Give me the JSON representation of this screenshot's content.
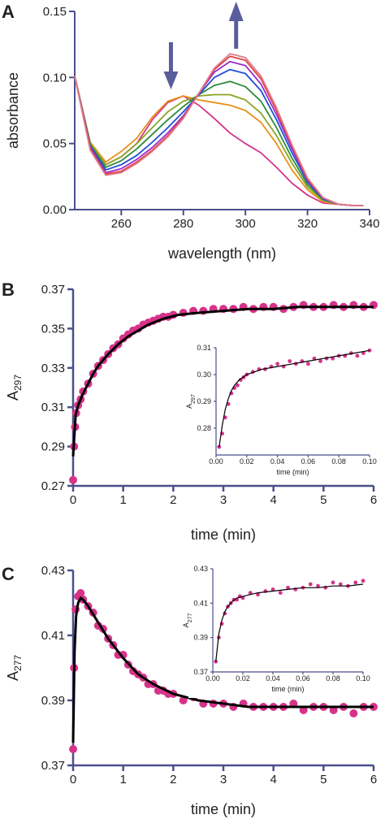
{
  "colors": {
    "axis": "#4a4f8c",
    "points": "#d6338a",
    "fit": "#000000",
    "arrow": "#5a5d9c"
  },
  "chart_data": [
    {
      "panel": "A",
      "type": "line",
      "xlabel": "wavelength (nm)",
      "ylabel": "absorbance",
      "xlim": [
        245,
        340
      ],
      "ylim": [
        0,
        0.15
      ],
      "xticks": [
        260,
        280,
        300,
        320,
        340
      ],
      "yticks": [
        0.0,
        0.05,
        0.1,
        0.15
      ],
      "ytick_labels": [
        "0.00",
        "0.05",
        "0.10",
        "0.15"
      ],
      "annotations": [
        {
          "type": "arrow-down",
          "x": 276
        },
        {
          "type": "arrow-up",
          "x": 297
        }
      ],
      "series": [
        {
          "color": "#d6338a",
          "x": [
            245,
            250,
            255,
            260,
            265,
            270,
            275,
            280,
            285,
            290,
            295,
            300,
            305,
            310,
            315,
            320,
            325,
            330,
            335,
            338
          ],
          "y": [
            0.101,
            0.05,
            0.034,
            0.04,
            0.05,
            0.068,
            0.081,
            0.086,
            0.079,
            0.069,
            0.058,
            0.05,
            0.043,
            0.032,
            0.02,
            0.011,
            0.005,
            0.004,
            0.003,
            0.003
          ]
        },
        {
          "color": "#e8901a",
          "x": [
            245,
            250,
            255,
            260,
            265,
            270,
            275,
            280,
            285,
            290,
            295,
            300,
            305,
            310,
            315,
            320,
            325,
            330,
            335,
            338
          ],
          "y": [
            0.101,
            0.051,
            0.036,
            0.044,
            0.054,
            0.07,
            0.082,
            0.086,
            0.083,
            0.081,
            0.079,
            0.075,
            0.066,
            0.05,
            0.03,
            0.015,
            0.006,
            0.004,
            0.003,
            0.003
          ]
        },
        {
          "color": "#8aa524",
          "x": [
            245,
            250,
            255,
            260,
            265,
            270,
            275,
            280,
            285,
            290,
            295,
            300,
            305,
            310,
            315,
            320,
            325,
            330,
            335,
            338
          ],
          "y": [
            0.101,
            0.05,
            0.034,
            0.04,
            0.05,
            0.062,
            0.074,
            0.082,
            0.086,
            0.087,
            0.087,
            0.083,
            0.073,
            0.056,
            0.035,
            0.017,
            0.007,
            0.004,
            0.003,
            0.003
          ]
        },
        {
          "color": "#2a8a3a",
          "x": [
            245,
            250,
            255,
            260,
            265,
            270,
            275,
            280,
            285,
            290,
            295,
            300,
            305,
            310,
            315,
            320,
            325,
            330,
            335,
            338
          ],
          "y": [
            0.101,
            0.049,
            0.032,
            0.037,
            0.046,
            0.057,
            0.068,
            0.078,
            0.087,
            0.094,
            0.097,
            0.093,
            0.082,
            0.062,
            0.039,
            0.019,
            0.008,
            0.004,
            0.003,
            0.003
          ]
        },
        {
          "color": "#1f4fd8",
          "x": [
            245,
            250,
            255,
            260,
            265,
            270,
            275,
            280,
            285,
            290,
            295,
            300,
            305,
            310,
            315,
            320,
            325,
            330,
            335,
            338
          ],
          "y": [
            0.101,
            0.048,
            0.03,
            0.034,
            0.041,
            0.051,
            0.062,
            0.074,
            0.087,
            0.1,
            0.106,
            0.103,
            0.09,
            0.068,
            0.043,
            0.021,
            0.008,
            0.004,
            0.003,
            0.003
          ]
        },
        {
          "color": "#9a2bd0",
          "x": [
            245,
            250,
            255,
            260,
            265,
            270,
            275,
            280,
            285,
            290,
            295,
            300,
            305,
            310,
            315,
            320,
            325,
            330,
            335,
            338
          ],
          "y": [
            0.101,
            0.047,
            0.028,
            0.031,
            0.038,
            0.047,
            0.058,
            0.071,
            0.088,
            0.104,
            0.112,
            0.109,
            0.095,
            0.072,
            0.046,
            0.022,
            0.009,
            0.004,
            0.003,
            0.003
          ]
        },
        {
          "color": "#e04040",
          "x": [
            245,
            250,
            255,
            260,
            265,
            270,
            275,
            280,
            285,
            290,
            295,
            300,
            305,
            310,
            315,
            320,
            325,
            330,
            335,
            338
          ],
          "y": [
            0.101,
            0.046,
            0.027,
            0.029,
            0.036,
            0.045,
            0.056,
            0.07,
            0.088,
            0.106,
            0.116,
            0.113,
            0.099,
            0.075,
            0.048,
            0.023,
            0.009,
            0.004,
            0.003,
            0.003
          ]
        },
        {
          "color": "#e07a8a",
          "x": [
            245,
            250,
            255,
            260,
            265,
            270,
            275,
            280,
            285,
            290,
            295,
            300,
            305,
            310,
            315,
            320,
            325,
            330,
            335,
            338
          ],
          "y": [
            0.101,
            0.045,
            0.026,
            0.028,
            0.035,
            0.044,
            0.055,
            0.069,
            0.088,
            0.107,
            0.118,
            0.115,
            0.101,
            0.077,
            0.049,
            0.024,
            0.009,
            0.004,
            0.003,
            0.003
          ]
        }
      ]
    },
    {
      "panel": "B",
      "type": "scatter",
      "xlabel": "time (min)",
      "ylabel": "A297",
      "xlim": [
        0,
        6
      ],
      "ylim": [
        0.27,
        0.37
      ],
      "xticks": [
        0,
        1,
        2,
        3,
        4,
        5,
        6
      ],
      "yticks": [
        0.27,
        0.29,
        0.31,
        0.33,
        0.35,
        0.37
      ],
      "ytick_labels": [
        "0.27",
        "0.29",
        "0.31",
        "0.33",
        "0.35",
        "0.37"
      ],
      "fit": {
        "x": [
          0,
          0.05,
          0.1,
          0.2,
          0.3,
          0.4,
          0.5,
          0.7,
          0.9,
          1.1,
          1.3,
          1.5,
          1.8,
          2.1,
          2.5,
          3,
          3.5,
          4,
          4.5,
          5,
          5.5,
          6
        ],
        "y": [
          0.285,
          0.306,
          0.311,
          0.317,
          0.322,
          0.327,
          0.331,
          0.337,
          0.342,
          0.346,
          0.349,
          0.352,
          0.355,
          0.357,
          0.358,
          0.359,
          0.36,
          0.36,
          0.361,
          0.361,
          0.361,
          0.361
        ]
      },
      "points_x": [
        0,
        0.02,
        0.04,
        0.06,
        0.1,
        0.15,
        0.2,
        0.3,
        0.4,
        0.5,
        0.6,
        0.7,
        0.8,
        0.9,
        1,
        1.1,
        1.2,
        1.3,
        1.4,
        1.5,
        1.6,
        1.7,
        1.8,
        1.9,
        2,
        2.2,
        2.4,
        2.6,
        2.8,
        3,
        3.2,
        3.4,
        3.6,
        3.8,
        4,
        4.2,
        4.4,
        4.6,
        4.8,
        5,
        5.2,
        5.4,
        5.6,
        5.8,
        6
      ],
      "points_y": [
        0.273,
        0.29,
        0.3,
        0.307,
        0.311,
        0.314,
        0.318,
        0.322,
        0.327,
        0.331,
        0.334,
        0.337,
        0.34,
        0.342,
        0.345,
        0.347,
        0.349,
        0.35,
        0.352,
        0.353,
        0.354,
        0.355,
        0.356,
        0.356,
        0.357,
        0.358,
        0.359,
        0.359,
        0.36,
        0.36,
        0.36,
        0.361,
        0.36,
        0.361,
        0.361,
        0.36,
        0.361,
        0.362,
        0.361,
        0.361,
        0.362,
        0.361,
        0.362,
        0.361,
        0.362
      ],
      "inset": {
        "xlabel": "time (min)",
        "ylabel": "A297",
        "xlim": [
          0,
          0.1
        ],
        "ylim": [
          0.27,
          0.31
        ],
        "xticks": [
          0.0,
          0.02,
          0.04,
          0.06,
          0.08,
          0.1
        ],
        "xtick_labels": [
          "0.00",
          "0.02",
          "0.04",
          "0.06",
          "0.08",
          "0.10"
        ],
        "yticks": [
          0.28,
          0.29,
          0.3,
          0.31
        ],
        "ytick_labels": [
          "0.28",
          "0.29",
          "0.30",
          "0.31"
        ],
        "fit": {
          "x": [
            0.002,
            0.004,
            0.006,
            0.008,
            0.01,
            0.012,
            0.015,
            0.02,
            0.03,
            0.04,
            0.05,
            0.06,
            0.07,
            0.08,
            0.09,
            0.1
          ],
          "y": [
            0.273,
            0.281,
            0.287,
            0.291,
            0.294,
            0.296,
            0.298,
            0.3,
            0.302,
            0.303,
            0.304,
            0.305,
            0.306,
            0.307,
            0.308,
            0.309
          ]
        },
        "points_x": [
          0.002,
          0.004,
          0.006,
          0.008,
          0.01,
          0.012,
          0.014,
          0.016,
          0.018,
          0.02,
          0.024,
          0.028,
          0.032,
          0.036,
          0.04,
          0.044,
          0.048,
          0.052,
          0.056,
          0.06,
          0.064,
          0.068,
          0.072,
          0.076,
          0.08,
          0.084,
          0.088,
          0.092,
          0.096,
          0.1
        ],
        "points_y": [
          0.273,
          0.278,
          0.284,
          0.289,
          0.293,
          0.295,
          0.296,
          0.298,
          0.299,
          0.3,
          0.301,
          0.302,
          0.302,
          0.303,
          0.304,
          0.303,
          0.305,
          0.304,
          0.305,
          0.304,
          0.306,
          0.305,
          0.306,
          0.306,
          0.307,
          0.307,
          0.308,
          0.307,
          0.308,
          0.309
        ]
      }
    },
    {
      "panel": "C",
      "type": "scatter",
      "xlabel": "time (min)",
      "ylabel": "A277",
      "xlim": [
        0,
        6
      ],
      "ylim": [
        0.37,
        0.43
      ],
      "xticks": [
        0,
        1,
        2,
        3,
        4,
        5,
        6
      ],
      "yticks": [
        0.37,
        0.39,
        0.41,
        0.43
      ],
      "ytick_labels": [
        "0.37",
        "0.39",
        "0.41",
        "0.43"
      ],
      "fit": {
        "x": [
          0,
          0.03,
          0.06,
          0.1,
          0.15,
          0.2,
          0.3,
          0.5,
          0.7,
          1,
          1.3,
          1.6,
          2,
          2.5,
          3,
          3.5,
          4,
          5,
          6
        ],
        "y": [
          0.377,
          0.405,
          0.416,
          0.42,
          0.4215,
          0.421,
          0.419,
          0.414,
          0.409,
          0.403,
          0.398,
          0.395,
          0.392,
          0.39,
          0.389,
          0.388,
          0.388,
          0.388,
          0.388
        ]
      },
      "points_x": [
        0,
        0.02,
        0.05,
        0.1,
        0.15,
        0.2,
        0.3,
        0.4,
        0.5,
        0.6,
        0.7,
        0.8,
        0.9,
        1,
        1.1,
        1.2,
        1.3,
        1.4,
        1.5,
        1.6,
        1.7,
        1.8,
        1.9,
        2,
        2.2,
        2.4,
        2.6,
        2.8,
        3,
        3.2,
        3.4,
        3.6,
        3.8,
        4,
        4.2,
        4.4,
        4.6,
        4.8,
        5,
        5.2,
        5.4,
        5.6,
        5.8,
        6
      ],
      "points_y": [
        0.375,
        0.4,
        0.418,
        0.422,
        0.423,
        0.421,
        0.419,
        0.417,
        0.413,
        0.412,
        0.409,
        0.407,
        0.404,
        0.404,
        0.401,
        0.399,
        0.398,
        0.397,
        0.395,
        0.395,
        0.393,
        0.393,
        0.392,
        0.392,
        0.39,
        0.391,
        0.389,
        0.389,
        0.389,
        0.388,
        0.389,
        0.388,
        0.388,
        0.388,
        0.388,
        0.389,
        0.387,
        0.388,
        0.388,
        0.387,
        0.388,
        0.386,
        0.388,
        0.388
      ],
      "inset": {
        "xlabel": "time (min)",
        "ylabel": "A277",
        "xlim": [
          0,
          0.1
        ],
        "ylim": [
          0.37,
          0.43
        ],
        "xticks": [
          0.0,
          0.02,
          0.04,
          0.06,
          0.08,
          0.1
        ],
        "xtick_labels": [
          "0.00",
          "0.02",
          "0.04",
          "0.06",
          "0.08",
          "0.10"
        ],
        "yticks": [
          0.37,
          0.39,
          0.41,
          0.43
        ],
        "ytick_labels": [
          "0.37",
          "0.39",
          "0.41",
          "0.43"
        ],
        "fit": {
          "x": [
            0.002,
            0.004,
            0.006,
            0.008,
            0.01,
            0.013,
            0.016,
            0.02,
            0.03,
            0.04,
            0.05,
            0.06,
            0.07,
            0.08,
            0.09,
            0.1
          ],
          "y": [
            0.376,
            0.392,
            0.4,
            0.405,
            0.408,
            0.411,
            0.413,
            0.414,
            0.416,
            0.417,
            0.418,
            0.419,
            0.419,
            0.42,
            0.42,
            0.421
          ]
        },
        "points_x": [
          0.002,
          0.004,
          0.006,
          0.008,
          0.01,
          0.012,
          0.014,
          0.016,
          0.018,
          0.02,
          0.025,
          0.03,
          0.035,
          0.04,
          0.045,
          0.05,
          0.055,
          0.06,
          0.065,
          0.07,
          0.075,
          0.08,
          0.085,
          0.09,
          0.095,
          0.1
        ],
        "points_y": [
          0.376,
          0.39,
          0.398,
          0.404,
          0.408,
          0.41,
          0.412,
          0.412,
          0.414,
          0.413,
          0.416,
          0.415,
          0.417,
          0.418,
          0.416,
          0.419,
          0.418,
          0.419,
          0.421,
          0.42,
          0.419,
          0.422,
          0.421,
          0.42,
          0.422,
          0.423
        ]
      }
    }
  ]
}
